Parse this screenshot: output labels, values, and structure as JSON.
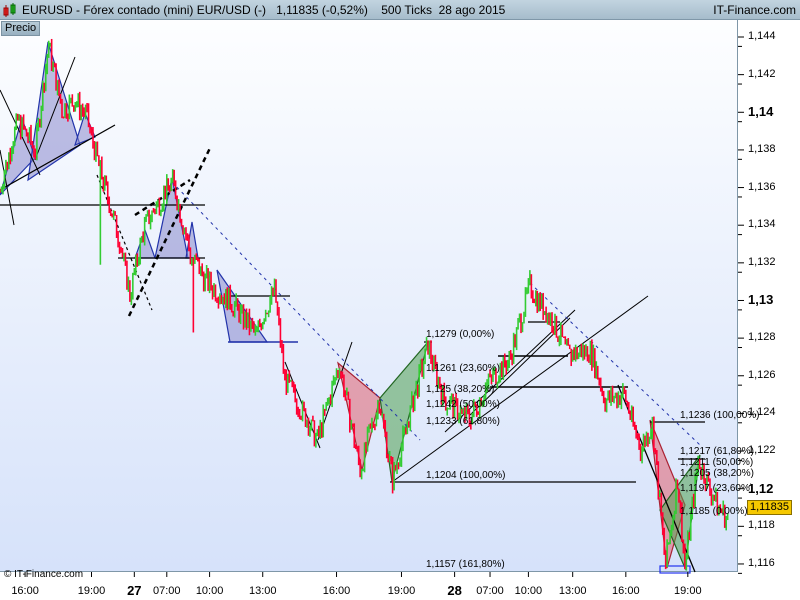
{
  "header": {
    "title": "EURUSD - Fórex contado (mini) EUR/USD (-)",
    "last": "1,11835 (-0,52%)",
    "ticks": "500 Ticks",
    "date": "28 ago 2015",
    "brand": "IT-Finance.com",
    "icon": "candlestick-icon"
  },
  "panel_label": "Precio",
  "copyright": "© IT-Finance.com",
  "last_price": "1,11835",
  "colors": {
    "up": "#33cc33",
    "down": "#ff0033",
    "pattern": "#8888cc",
    "bear": "#e06070",
    "bull": "#50a050",
    "background": "#dce6f8"
  },
  "chart_data": {
    "type": "bar",
    "instrument": "EURUSD",
    "ylim": [
      1.115,
      1.145
    ],
    "y_ticks": [
      {
        "v": 1.144,
        "l": "1,144"
      },
      {
        "v": 1.142,
        "l": "1,142"
      },
      {
        "v": 1.14,
        "l": "1,14",
        "bold": true
      },
      {
        "v": 1.138,
        "l": "1,138"
      },
      {
        "v": 1.136,
        "l": "1,136"
      },
      {
        "v": 1.134,
        "l": "1,134"
      },
      {
        "v": 1.132,
        "l": "1,132"
      },
      {
        "v": 1.13,
        "l": "1,13",
        "bold": true
      },
      {
        "v": 1.128,
        "l": "1,128"
      },
      {
        "v": 1.126,
        "l": "1,126"
      },
      {
        "v": 1.124,
        "l": "1,124"
      },
      {
        "v": 1.122,
        "l": "1,122"
      },
      {
        "v": 1.12,
        "l": "1,12",
        "bold": true
      },
      {
        "v": 1.118,
        "l": "1,118"
      },
      {
        "v": 1.116,
        "l": "1,116"
      }
    ],
    "x_ticks": [
      {
        "bar": 17,
        "l": "16:00"
      },
      {
        "bar": 62,
        "l": "19:00"
      },
      {
        "bar": 91,
        "l": "27",
        "bold": true
      },
      {
        "bar": 113,
        "l": "07:00"
      },
      {
        "bar": 142,
        "l": "10:00"
      },
      {
        "bar": 178,
        "l": "13:00"
      },
      {
        "bar": 228,
        "l": "16:00"
      },
      {
        "bar": 272,
        "l": "19:00"
      },
      {
        "bar": 308,
        "l": "28",
        "bold": true
      },
      {
        "bar": 332,
        "l": "07:00"
      },
      {
        "bar": 358,
        "l": "10:00"
      },
      {
        "bar": 388,
        "l": "13:00"
      },
      {
        "bar": 424,
        "l": "16:00"
      },
      {
        "bar": 466,
        "l": "19:00"
      }
    ],
    "price_path": [
      [
        0,
        1.1359
      ],
      [
        12,
        1.1396
      ],
      [
        24,
        1.138
      ],
      [
        33,
        1.1436
      ],
      [
        42,
        1.1401
      ],
      [
        51,
        1.1406
      ],
      [
        58,
        1.1399
      ],
      [
        68,
        1.1369
      ],
      [
        81,
        1.1332
      ],
      [
        88,
        1.1303
      ],
      [
        98,
        1.134
      ],
      [
        117,
        1.1364
      ],
      [
        129,
        1.1324
      ],
      [
        142,
        1.1308
      ],
      [
        156,
        1.13
      ],
      [
        173,
        1.1282
      ],
      [
        186,
        1.1306
      ],
      [
        193,
        1.1258
      ],
      [
        215,
        1.1226
      ],
      [
        230,
        1.1266
      ],
      [
        244,
        1.121
      ],
      [
        257,
        1.1247
      ],
      [
        266,
        1.1205
      ],
      [
        290,
        1.1276
      ],
      [
        301,
        1.1247
      ],
      [
        318,
        1.1237
      ],
      [
        332,
        1.1258
      ],
      [
        345,
        1.1268
      ],
      [
        359,
        1.1308
      ],
      [
        373,
        1.129
      ],
      [
        386,
        1.1271
      ],
      [
        400,
        1.1274
      ],
      [
        410,
        1.1247
      ],
      [
        423,
        1.125
      ],
      [
        434,
        1.1221
      ],
      [
        442,
        1.1234
      ],
      [
        451,
        1.1159
      ],
      [
        459,
        1.1205
      ],
      [
        464,
        1.1159
      ],
      [
        473,
        1.1215
      ],
      [
        484,
        1.1194
      ],
      [
        493,
        1.11835
      ]
    ],
    "spikes": [
      [
        68,
        1.1319
      ],
      [
        131,
        1.1283
      ]
    ],
    "fib_left": [
      {
        "p": 1.1279,
        "l": "1,1279 (0,00%)"
      },
      {
        "p": 1.1261,
        "l": "1,1261 (23,60%)"
      },
      {
        "p": 1.125,
        "l": "1,125 (38,20%)"
      },
      {
        "p": 1.1242,
        "l": "1,1242 (50,00%)"
      },
      {
        "p": 1.1233,
        "l": "1,1233 (61,80%)"
      },
      {
        "p": 1.1204,
        "l": "1,1204 (100,00%)"
      },
      {
        "p": 1.1157,
        "l": "1,1157 (161,80%)"
      }
    ],
    "fib_right": [
      {
        "p": 1.1236,
        "l": "1,1236 (100,00%)"
      },
      {
        "p": 1.1217,
        "l": "1,1217 (61,80%)"
      },
      {
        "p": 1.1211,
        "l": "1,1211 (50,00%)"
      },
      {
        "p": 1.1205,
        "l": "1,1205 (38,20%)"
      },
      {
        "p": 1.1197,
        "l": "1,1197 (23,60%)"
      },
      {
        "p": 1.1185,
        "l": "1,1185 (0,00%)"
      }
    ]
  }
}
